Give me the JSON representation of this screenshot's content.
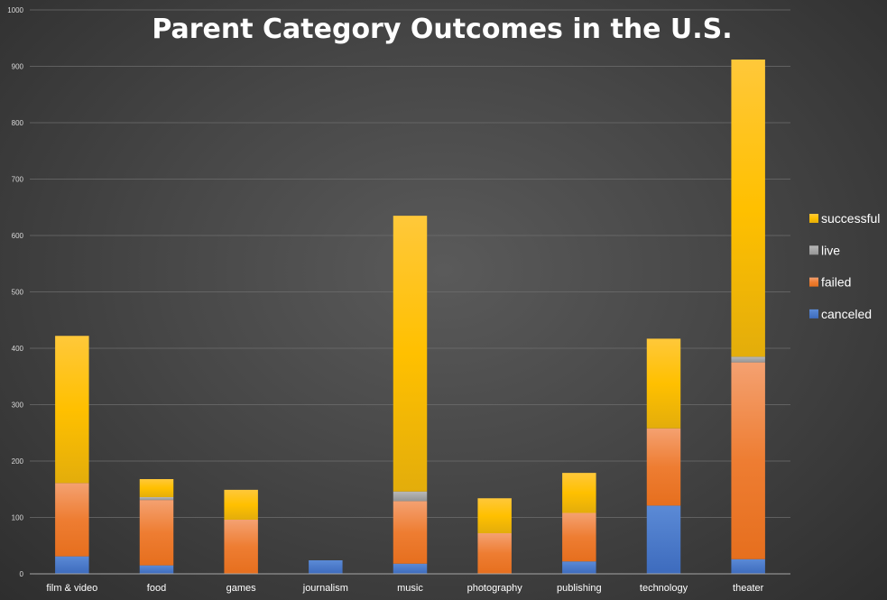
{
  "chart_data": {
    "type": "bar",
    "stacked": true,
    "title": "Parent Category Outcomes in the U.S.",
    "xlabel": "",
    "ylabel": "",
    "ylim": [
      0,
      1000
    ],
    "y_ticks": [
      0,
      100,
      200,
      300,
      400,
      500,
      600,
      700,
      800,
      900,
      1000
    ],
    "grid": true,
    "legend_position": "right",
    "categories": [
      "film & video",
      "food",
      "games",
      "journalism",
      "music",
      "photography",
      "publishing",
      "technology",
      "theater"
    ],
    "series": [
      {
        "name": "canceled",
        "color": "#4472c4",
        "values": [
          31,
          15,
          0,
          24,
          18,
          0,
          22,
          121,
          26
        ]
      },
      {
        "name": "failed",
        "color": "#ed7d31",
        "values": [
          130,
          116,
          96,
          0,
          111,
          72,
          86,
          137,
          349
        ]
      },
      {
        "name": "live",
        "color": "#a5a5a5",
        "values": [
          0,
          5,
          0,
          0,
          17,
          0,
          0,
          0,
          10
        ]
      },
      {
        "name": "successful",
        "color": "#ffc000",
        "values": [
          261,
          32,
          53,
          0,
          489,
          62,
          71,
          159,
          527
        ]
      }
    ],
    "legend_order": [
      "successful",
      "live",
      "failed",
      "canceled"
    ]
  }
}
